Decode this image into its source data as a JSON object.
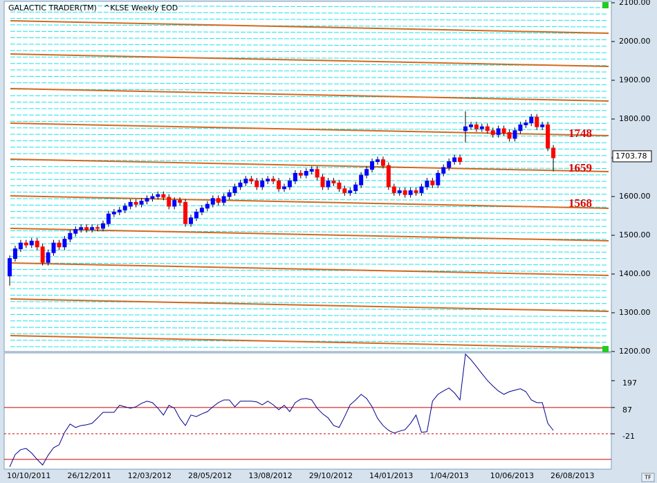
{
  "chart_data": [
    {
      "type": "candlestick",
      "title": "GALACTIC TRADER(TM)",
      "subtitle": "^KLSE Weekly EOD",
      "categories": [
        "10/10/2011",
        null,
        null,
        null,
        null,
        null,
        null,
        null,
        null,
        null,
        null,
        "26/12/2011",
        null,
        null,
        null,
        null,
        null,
        null,
        null,
        null,
        null,
        null,
        "12/03/2012",
        null,
        null,
        null,
        null,
        null,
        null,
        null,
        null,
        null,
        null,
        "28/05/2012",
        null,
        null,
        null,
        null,
        null,
        null,
        null,
        null,
        null,
        null,
        "13/08/2012",
        null,
        null,
        null,
        null,
        null,
        null,
        null,
        null,
        null,
        null,
        "29/10/2012",
        null,
        null,
        null,
        null,
        null,
        null,
        null,
        null,
        null,
        null,
        "14/01/2013",
        null,
        null,
        null,
        null,
        null,
        null,
        null,
        null,
        null,
        null,
        "1/04/2013",
        null,
        null,
        null,
        null,
        null,
        null,
        null,
        null,
        null,
        null,
        "10/06/2013",
        null,
        null,
        null,
        null,
        null,
        null,
        null,
        null,
        null,
        null,
        "26/08/2013"
      ],
      "open": [
        1395,
        1440,
        1465,
        1480,
        1475,
        1485,
        1470,
        1430,
        1455,
        1480,
        1470,
        1490,
        1505,
        1515,
        1520,
        1515,
        1520,
        1518,
        1530,
        1555,
        1560,
        1565,
        1575,
        1585,
        1580,
        1588,
        1595,
        1600,
        1605,
        1598,
        1575,
        1590,
        1585,
        1530,
        1545,
        1560,
        1570,
        1580,
        1595,
        1585,
        1600,
        1610,
        1625,
        1635,
        1645,
        1640,
        1625,
        1640,
        1645,
        1640,
        1620,
        1625,
        1640,
        1660,
        1655,
        1665,
        1670,
        1650,
        1625,
        1640,
        1635,
        1620,
        1610,
        1615,
        1630,
        1655,
        1670,
        1690,
        1695,
        1680,
        1625,
        1610,
        1615,
        1605,
        1615,
        1610,
        1625,
        1640,
        1630,
        1660,
        1675,
        1690,
        1700,
        1770,
        1780,
        1785,
        1775,
        1780,
        1770,
        1760,
        1775,
        1765,
        1750,
        1770,
        1785,
        1790,
        1805,
        1780,
        1785,
        1725
      ],
      "high": [
        1448,
        1473,
        1488,
        1488,
        1493,
        1493,
        1478,
        1463,
        1488,
        1488,
        1498,
        1513,
        1523,
        1528,
        1528,
        1528,
        1528,
        1538,
        1563,
        1568,
        1573,
        1583,
        1593,
        1593,
        1596,
        1603,
        1608,
        1613,
        1613,
        1606,
        1598,
        1598,
        1593,
        1553,
        1568,
        1578,
        1588,
        1603,
        1603,
        1608,
        1618,
        1633,
        1643,
        1653,
        1653,
        1648,
        1648,
        1653,
        1653,
        1648,
        1633,
        1648,
        1668,
        1668,
        1673,
        1678,
        1678,
        1658,
        1648,
        1648,
        1643,
        1628,
        1623,
        1638,
        1663,
        1678,
        1698,
        1703,
        1703,
        1688,
        1633,
        1623,
        1623,
        1623,
        1623,
        1633,
        1648,
        1648,
        1668,
        1683,
        1698,
        1708,
        1708,
        1820,
        1793,
        1793,
        1788,
        1788,
        1778,
        1783,
        1783,
        1773,
        1778,
        1793,
        1798,
        1813,
        1813,
        1793,
        1793,
        1733
      ],
      "low": [
        1370,
        1432,
        1457,
        1467,
        1467,
        1462,
        1422,
        1422,
        1447,
        1462,
        1462,
        1482,
        1497,
        1507,
        1507,
        1507,
        1510,
        1510,
        1522,
        1547,
        1552,
        1557,
        1567,
        1572,
        1572,
        1580,
        1587,
        1592,
        1590,
        1567,
        1567,
        1577,
        1522,
        1522,
        1537,
        1552,
        1562,
        1572,
        1577,
        1577,
        1592,
        1602,
        1617,
        1627,
        1632,
        1617,
        1617,
        1632,
        1632,
        1612,
        1612,
        1617,
        1632,
        1647,
        1647,
        1657,
        1642,
        1617,
        1617,
        1627,
        1612,
        1602,
        1602,
        1607,
        1622,
        1647,
        1662,
        1682,
        1672,
        1617,
        1602,
        1602,
        1597,
        1597,
        1602,
        1602,
        1617,
        1622,
        1622,
        1652,
        1667,
        1682,
        1682,
        1740,
        1772,
        1767,
        1767,
        1762,
        1752,
        1752,
        1757,
        1742,
        1742,
        1762,
        1777,
        1782,
        1772,
        1772,
        1717,
        1665
      ],
      "close": [
        1440,
        1465,
        1480,
        1475,
        1485,
        1470,
        1430,
        1455,
        1480,
        1470,
        1490,
        1505,
        1515,
        1520,
        1515,
        1520,
        1518,
        1530,
        1555,
        1560,
        1565,
        1575,
        1585,
        1580,
        1588,
        1595,
        1600,
        1605,
        1598,
        1575,
        1590,
        1585,
        1530,
        1545,
        1560,
        1570,
        1580,
        1595,
        1585,
        1600,
        1610,
        1625,
        1635,
        1645,
        1640,
        1625,
        1640,
        1645,
        1640,
        1620,
        1625,
        1640,
        1660,
        1655,
        1665,
        1670,
        1650,
        1625,
        1640,
        1635,
        1620,
        1610,
        1615,
        1630,
        1655,
        1670,
        1690,
        1695,
        1680,
        1625,
        1610,
        1615,
        1605,
        1615,
        1610,
        1625,
        1640,
        1630,
        1660,
        1675,
        1690,
        1700,
        1690,
        1780,
        1785,
        1775,
        1780,
        1770,
        1760,
        1775,
        1765,
        1750,
        1770,
        1785,
        1790,
        1805,
        1780,
        1785,
        1725,
        1700
      ],
      "up_color": "#0000ff",
      "down_color": "#ff0000",
      "ylim": [
        1200,
        2100
      ],
      "yticks": [
        {
          "value": 2100,
          "label": "2100.00"
        },
        {
          "value": 2000,
          "label": "2000.00"
        },
        {
          "value": 1900,
          "label": "1900.00"
        },
        {
          "value": 1800,
          "label": "1800.00"
        },
        {
          "value": 1700,
          "label": "1700.00"
        },
        {
          "value": 1600,
          "label": "1600.00"
        },
        {
          "value": 1500,
          "label": "1500.00"
        },
        {
          "value": 1400,
          "label": "1400.00"
        },
        {
          "value": 1300,
          "label": "1300.00"
        },
        {
          "value": 1200,
          "label": "1200.00"
        }
      ],
      "last_price": 1703.78,
      "level_labels": [
        1748,
        1659,
        1568
      ],
      "level_color": "#e00000"
    },
    {
      "type": "line",
      "values": [
        -157,
        -106,
        -86,
        -81,
        -100,
        -126,
        -149,
        -109,
        -78,
        -66,
        -15,
        19,
        5,
        13,
        16,
        22,
        44,
        67,
        67,
        67,
        96,
        90,
        84,
        90,
        104,
        113,
        107,
        84,
        56,
        96,
        84,
        42,
        13,
        56,
        50,
        61,
        70,
        90,
        107,
        118,
        118,
        90,
        113,
        113,
        113,
        110,
        98,
        113,
        98,
        78,
        96,
        70,
        107,
        121,
        124,
        118,
        84,
        61,
        44,
        13,
        5,
        50,
        98,
        118,
        141,
        124,
        90,
        42,
        13,
        -7,
        -18,
        -10,
        -4,
        22,
        56,
        -15,
        -12,
        113,
        141,
        155,
        167,
        147,
        118,
        306,
        283,
        255,
        226,
        198,
        175,
        155,
        141,
        152,
        158,
        164,
        152,
        118,
        107,
        107,
        22,
        -7
      ],
      "color": "#00008b",
      "ylim": [
        -166,
        311
      ],
      "yticks": [
        197,
        87,
        -21
      ],
      "reference_lines": [
        87,
        -21,
        -126
      ],
      "reference_styles": [
        "solid",
        "dashed",
        "solid"
      ],
      "reference_color": "#cc0000"
    }
  ],
  "controls": {
    "tf": "TF"
  }
}
